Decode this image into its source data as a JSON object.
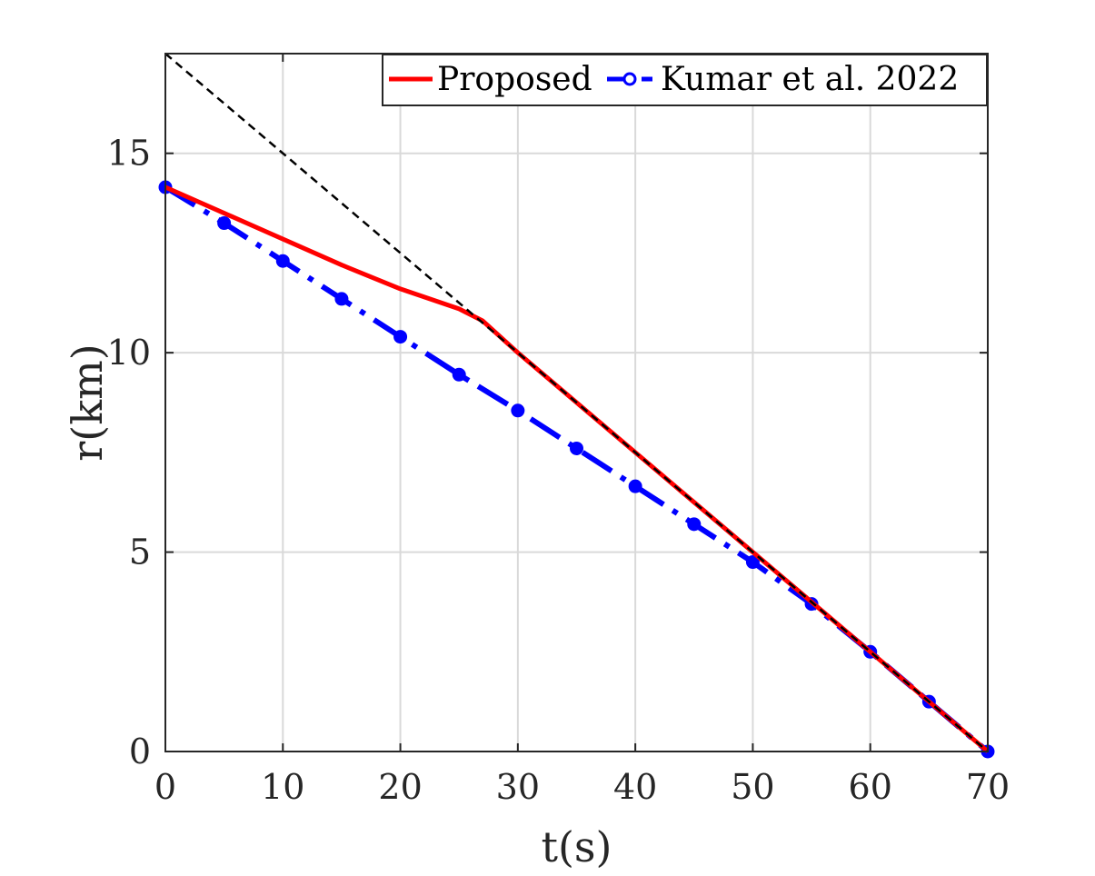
{
  "chart_data": {
    "type": "line",
    "title": "",
    "xlabel": "t(s)",
    "ylabel": "r(km)",
    "xlim": [
      0,
      70
    ],
    "ylim": [
      0,
      17.5
    ],
    "x_ticks": [
      0,
      10,
      20,
      30,
      40,
      50,
      60,
      70
    ],
    "y_ticks": [
      0,
      5,
      10,
      15
    ],
    "x_tick_labels": [
      "0",
      "10",
      "20",
      "30",
      "40",
      "50",
      "60",
      "70"
    ],
    "y_tick_labels": [
      "0",
      "5",
      "10",
      "15"
    ],
    "grid": true,
    "legend_position": "top-right",
    "legend_orientation": "horizontal",
    "series": [
      {
        "name": "Proposed",
        "color": "#ff0000",
        "style": "solid",
        "marker": "none",
        "x": [
          0,
          5,
          10,
          15,
          20,
          25,
          27,
          30,
          35,
          40,
          45,
          50,
          55,
          60,
          65,
          70
        ],
        "y": [
          14.15,
          13.5,
          12.85,
          12.2,
          11.6,
          11.1,
          10.8,
          10.0,
          8.75,
          7.5,
          6.25,
          5.0,
          3.75,
          2.5,
          1.25,
          0.0
        ]
      },
      {
        "name": "Kumar et al. 2022",
        "color": "#0000ff",
        "style": "dash-dot",
        "marker": "circle",
        "x": [
          0,
          5,
          10,
          15,
          20,
          25,
          30,
          35,
          40,
          45,
          50,
          55,
          60,
          65,
          70
        ],
        "y": [
          14.15,
          13.25,
          12.3,
          11.35,
          10.4,
          9.45,
          8.55,
          7.6,
          6.65,
          5.7,
          4.75,
          3.7,
          2.5,
          1.25,
          0.0
        ]
      },
      {
        "name": "",
        "color": "#000000",
        "style": "dashed",
        "marker": "none",
        "x": [
          0,
          70
        ],
        "y": [
          17.5,
          0
        ]
      }
    ]
  }
}
